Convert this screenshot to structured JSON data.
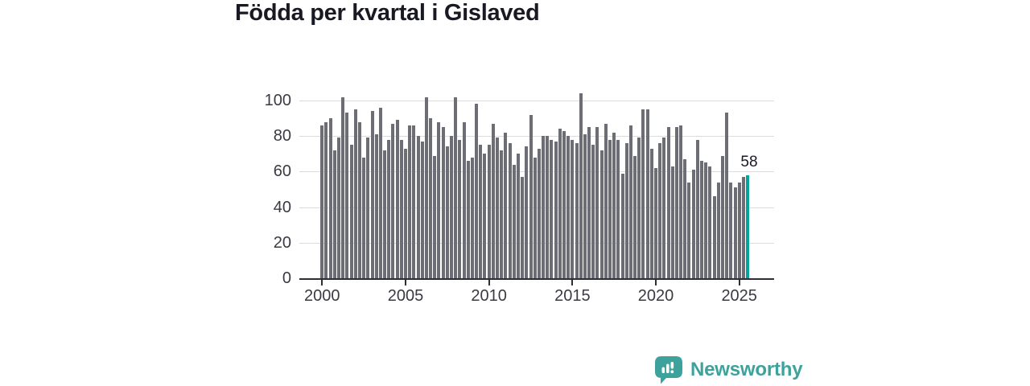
{
  "title": "Födda per kvartal i Gislaved",
  "annotation": {
    "value_label": "58"
  },
  "logo": {
    "text": "Newsworthy"
  },
  "colors": {
    "bar": "#6d6d76",
    "highlight_bar": "#00a69e",
    "logo_teal": "#3da29b",
    "title_text": "#191923",
    "axis_text": "#3a3a44",
    "gridline": "#dcdcdc",
    "axis_line": "#2e2e38",
    "background": "#ffffff"
  },
  "chart_data": {
    "type": "bar",
    "title": "Födda per kvartal i Gislaved",
    "xlabel": "",
    "ylabel": "",
    "frequency": "quarterly",
    "start": "2000-Q1",
    "end": "2025-Q3",
    "ylim": [
      0,
      100
    ],
    "y_ticks": [
      0,
      20,
      40,
      60,
      80,
      100
    ],
    "x_tick_labels": [
      "2000",
      "2005",
      "2010",
      "2015",
      "2020",
      "2025"
    ],
    "grid": true,
    "legend": false,
    "highlight": {
      "index": 102,
      "quarter": "2025-Q3",
      "value": 58,
      "label": "58"
    },
    "years": [
      {
        "year": 2000,
        "values": [
          86,
          88,
          90,
          72
        ]
      },
      {
        "year": 2001,
        "values": [
          79,
          102,
          93,
          75
        ]
      },
      {
        "year": 2002,
        "values": [
          95,
          88,
          68,
          79
        ]
      },
      {
        "year": 2003,
        "values": [
          94,
          81,
          96,
          72
        ]
      },
      {
        "year": 2004,
        "values": [
          78,
          87,
          89,
          78
        ]
      },
      {
        "year": 2005,
        "values": [
          73,
          86,
          86,
          80
        ]
      },
      {
        "year": 2006,
        "values": [
          77,
          102,
          90,
          69
        ]
      },
      {
        "year": 2007,
        "values": [
          88,
          85,
          74,
          80
        ]
      },
      {
        "year": 2008,
        "values": [
          102,
          78,
          88,
          66
        ]
      },
      {
        "year": 2009,
        "values": [
          68,
          98,
          75,
          70
        ]
      },
      {
        "year": 2010,
        "values": [
          75,
          87,
          79,
          72
        ]
      },
      {
        "year": 2011,
        "values": [
          82,
          76,
          64,
          70
        ]
      },
      {
        "year": 2012,
        "values": [
          57,
          74,
          92,
          68
        ]
      },
      {
        "year": 2013,
        "values": [
          73,
          80,
          80,
          78
        ]
      },
      {
        "year": 2014,
        "values": [
          77,
          84,
          83,
          80
        ]
      },
      {
        "year": 2015,
        "values": [
          78,
          76,
          104,
          81
        ]
      },
      {
        "year": 2016,
        "values": [
          85,
          75,
          85,
          72
        ]
      },
      {
        "year": 2017,
        "values": [
          87,
          78,
          82,
          78
        ]
      },
      {
        "year": 2018,
        "values": [
          59,
          76,
          86,
          69
        ]
      },
      {
        "year": 2019,
        "values": [
          79,
          95,
          95,
          73
        ]
      },
      {
        "year": 2020,
        "values": [
          62,
          76,
          79,
          85
        ]
      },
      {
        "year": 2021,
        "values": [
          63,
          85,
          86,
          67
        ]
      },
      {
        "year": 2022,
        "values": [
          54,
          61,
          78,
          66
        ]
      },
      {
        "year": 2023,
        "values": [
          65,
          63,
          46,
          54
        ]
      },
      {
        "year": 2024,
        "values": [
          69,
          93,
          54,
          51
        ]
      },
      {
        "year": 2025,
        "values": [
          54,
          57,
          58
        ]
      }
    ]
  }
}
